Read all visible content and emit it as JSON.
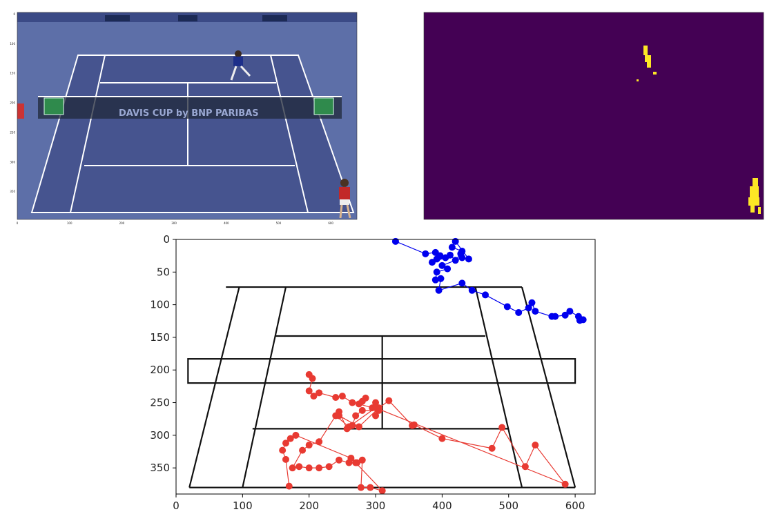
{
  "chart_data": [
    {
      "type": "image",
      "title": "",
      "content": "broadcast tennis frame",
      "banner": "DAVIS CUP by BNP PARIBAS",
      "xticks": [
        "0",
        "100",
        "200",
        "300",
        "400",
        "500",
        "600"
      ],
      "yticks": [
        "0",
        "100",
        "150",
        "200",
        "250",
        "300",
        "350"
      ],
      "colors": {
        "court": "#46548f",
        "surround": "#5d6fa8",
        "lines": "#ffffff",
        "player_far": "#1d2f8a",
        "player_near": "#c22828"
      }
    },
    {
      "type": "heatmap",
      "title": "",
      "content": "binary player mask",
      "colors": {
        "background": "#440154",
        "foreground": "#fde725"
      }
    },
    {
      "type": "line",
      "title": "",
      "xlim": [
        0,
        630
      ],
      "ylim": [
        390,
        0
      ],
      "xticks": [
        0,
        100,
        200,
        300,
        400,
        500,
        600
      ],
      "yticks": [
        0,
        50,
        100,
        150,
        200,
        250,
        300,
        350
      ],
      "grid": false,
      "court": {
        "lines": [
          [
            [
              20,
              380
            ],
            [
              600,
              380
            ]
          ],
          [
            [
              75,
              73
            ],
            [
              520,
              73
            ]
          ],
          [
            [
              20,
              380
            ],
            [
              95,
              73
            ]
          ],
          [
            [
              600,
              380
            ],
            [
              520,
              73
            ]
          ],
          [
            [
              100,
              380
            ],
            [
              165,
              73
            ]
          ],
          [
            [
              520,
              380
            ],
            [
              450,
              73
            ]
          ],
          [
            [
              150,
              148
            ],
            [
              465,
              148
            ]
          ],
          [
            [
              115,
              290
            ],
            [
              500,
              290
            ]
          ],
          [
            [
              310,
              148
            ],
            [
              310,
              290
            ]
          ]
        ],
        "net": {
          "x0": 18,
          "x1": 600,
          "y0": 183,
          "y1": 220
        }
      },
      "series": [
        {
          "name": "",
          "color": "#0000ee",
          "points": [
            [
              330,
              3
            ],
            [
              375,
              22
            ],
            [
              390,
              20
            ],
            [
              392,
              30
            ],
            [
              397,
              25
            ],
            [
              385,
              35
            ],
            [
              405,
              28
            ],
            [
              412,
              24
            ],
            [
              420,
              32
            ],
            [
              428,
              22
            ],
            [
              430,
              18
            ],
            [
              415,
              12
            ],
            [
              420,
              3
            ],
            [
              440,
              30
            ],
            [
              430,
              28
            ],
            [
              400,
              40
            ],
            [
              408,
              45
            ],
            [
              392,
              50
            ],
            [
              390,
              62
            ],
            [
              398,
              60
            ],
            [
              395,
              78
            ],
            [
              430,
              67
            ],
            [
              445,
              78
            ],
            [
              465,
              85
            ],
            [
              498,
              103
            ],
            [
              515,
              112
            ],
            [
              530,
              105
            ],
            [
              535,
              97
            ],
            [
              540,
              110
            ],
            [
              565,
              118
            ],
            [
              570,
              118
            ],
            [
              585,
              116
            ],
            [
              592,
              110
            ],
            [
              605,
              118
            ],
            [
              607,
              124
            ],
            [
              612,
              123
            ]
          ]
        },
        {
          "name": "",
          "color": "#e83a32",
          "points": [
            [
              200,
              207
            ],
            [
              205,
              213
            ],
            [
              200,
              232
            ],
            [
              207,
              240
            ],
            [
              215,
              235
            ],
            [
              240,
              242
            ],
            [
              250,
              240
            ],
            [
              265,
              250
            ],
            [
              280,
              248
            ],
            [
              285,
              243
            ],
            [
              275,
              252
            ],
            [
              295,
              258
            ],
            [
              300,
              250
            ],
            [
              300,
              270
            ],
            [
              305,
              262
            ],
            [
              280,
              262
            ],
            [
              270,
              270
            ],
            [
              265,
              285
            ],
            [
              257,
              290
            ],
            [
              245,
              264
            ],
            [
              245,
              270
            ],
            [
              275,
              287
            ],
            [
              305,
              258
            ],
            [
              320,
              247
            ],
            [
              355,
              285
            ],
            [
              358,
              284
            ],
            [
              400,
              305
            ],
            [
              475,
              320
            ],
            [
              490,
              288
            ],
            [
              525,
              348
            ],
            [
              540,
              315
            ],
            [
              585,
              375
            ],
            [
              300,
              258
            ],
            [
              260,
              287
            ],
            [
              240,
              270
            ],
            [
              215,
              310
            ],
            [
              200,
              315
            ],
            [
              190,
              323
            ],
            [
              175,
              350
            ],
            [
              185,
              348
            ],
            [
              200,
              350
            ],
            [
              215,
              350
            ],
            [
              230,
              348
            ],
            [
              245,
              338
            ],
            [
              260,
              342
            ],
            [
              272,
              342
            ],
            [
              280,
              338
            ],
            [
              278,
              380
            ],
            [
              292,
              380
            ],
            [
              310,
              385
            ],
            [
              270,
              342
            ],
            [
              263,
              335
            ],
            [
              180,
              300
            ],
            [
              172,
              305
            ],
            [
              165,
              312
            ],
            [
              160,
              323
            ],
            [
              165,
              337
            ],
            [
              170,
              378
            ]
          ]
        }
      ]
    }
  ]
}
